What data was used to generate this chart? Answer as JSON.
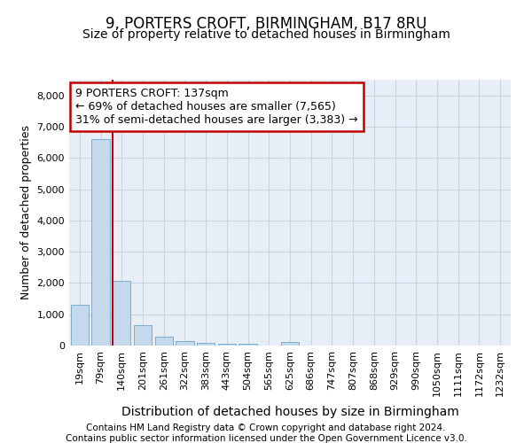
{
  "title_line1": "9, PORTERS CROFT, BIRMINGHAM, B17 8RU",
  "title_line2": "Size of property relative to detached houses in Birmingham",
  "xlabel": "Distribution of detached houses by size in Birmingham",
  "ylabel": "Number of detached properties",
  "categories": [
    "19sqm",
    "79sqm",
    "140sqm",
    "201sqm",
    "261sqm",
    "322sqm",
    "383sqm",
    "443sqm",
    "504sqm",
    "565sqm",
    "625sqm",
    "686sqm",
    "747sqm",
    "807sqm",
    "868sqm",
    "929sqm",
    "990sqm",
    "1050sqm",
    "1111sqm",
    "1172sqm",
    "1232sqm"
  ],
  "values": [
    1310,
    6590,
    2080,
    660,
    290,
    140,
    95,
    65,
    65,
    0,
    110,
    0,
    0,
    0,
    0,
    0,
    0,
    0,
    0,
    0,
    0
  ],
  "bar_color": "#c5d9ed",
  "bar_edge_color": "#7aadce",
  "property_line_index": 2,
  "property_line_color": "#c00000",
  "annotation_text": "9 PORTERS CROFT: 137sqm\n← 69% of detached houses are smaller (7,565)\n31% of semi-detached houses are larger (3,383) →",
  "annotation_box_facecolor": "#ffffff",
  "annotation_box_edgecolor": "#c00000",
  "ylim": [
    0,
    8500
  ],
  "yticks": [
    0,
    1000,
    2000,
    3000,
    4000,
    5000,
    6000,
    7000,
    8000
  ],
  "footer_line1": "Contains HM Land Registry data © Crown copyright and database right 2024.",
  "footer_line2": "Contains public sector information licensed under the Open Government Licence v3.0.",
  "grid_color": "#c8d4e3",
  "plot_bg_color": "#e8eef6",
  "fig_bg_color": "#ffffff",
  "title_fontsize": 12,
  "subtitle_fontsize": 10,
  "tick_fontsize": 8,
  "ylabel_fontsize": 9,
  "xlabel_fontsize": 10,
  "annotation_fontsize": 9,
  "footer_fontsize": 7.5
}
